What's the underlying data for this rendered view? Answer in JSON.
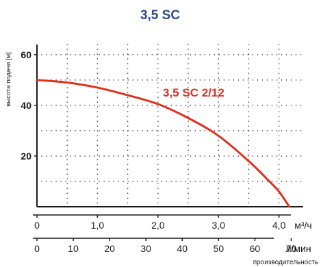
{
  "chart_data": {
    "type": "line",
    "title": "3,5 SC",
    "ylabel": "высота подачи [м]",
    "ylim": [
      0,
      64
    ],
    "yticks": [
      20,
      40,
      60
    ],
    "ytick_labels": [
      "20",
      "40",
      "60"
    ],
    "x_axes": [
      {
        "unit_label": "м³/ч",
        "range": [
          0,
          4.4
        ],
        "ticks": [
          0,
          1.0,
          2.0,
          3.0,
          4.0
        ],
        "tick_labels": [
          "0",
          "1,0",
          "2,0",
          "3,0",
          "4,0"
        ]
      },
      {
        "unit_label": "л/мин",
        "range": [
          0,
          73.3
        ],
        "ticks": [
          0,
          10,
          20,
          30,
          40,
          50,
          60,
          70
        ],
        "tick_labels": [
          "0",
          "10",
          "20",
          "30",
          "40",
          "50",
          "60",
          "70"
        ],
        "caption": "производительность"
      }
    ],
    "grid": true,
    "series": [
      {
        "name": "3,5 SC 2/12",
        "color": "#e0301e",
        "x": [
          0,
          0.5,
          1.0,
          1.5,
          2.0,
          2.5,
          3.0,
          3.5,
          3.8,
          4.0,
          4.17
        ],
        "y": [
          50,
          49,
          47,
          44,
          40.5,
          35,
          28,
          18,
          11,
          6,
          0
        ]
      }
    ]
  },
  "colors": {
    "title": "#2e4a8b",
    "series": "#e0301e",
    "axis": "#1a1a1a"
  }
}
